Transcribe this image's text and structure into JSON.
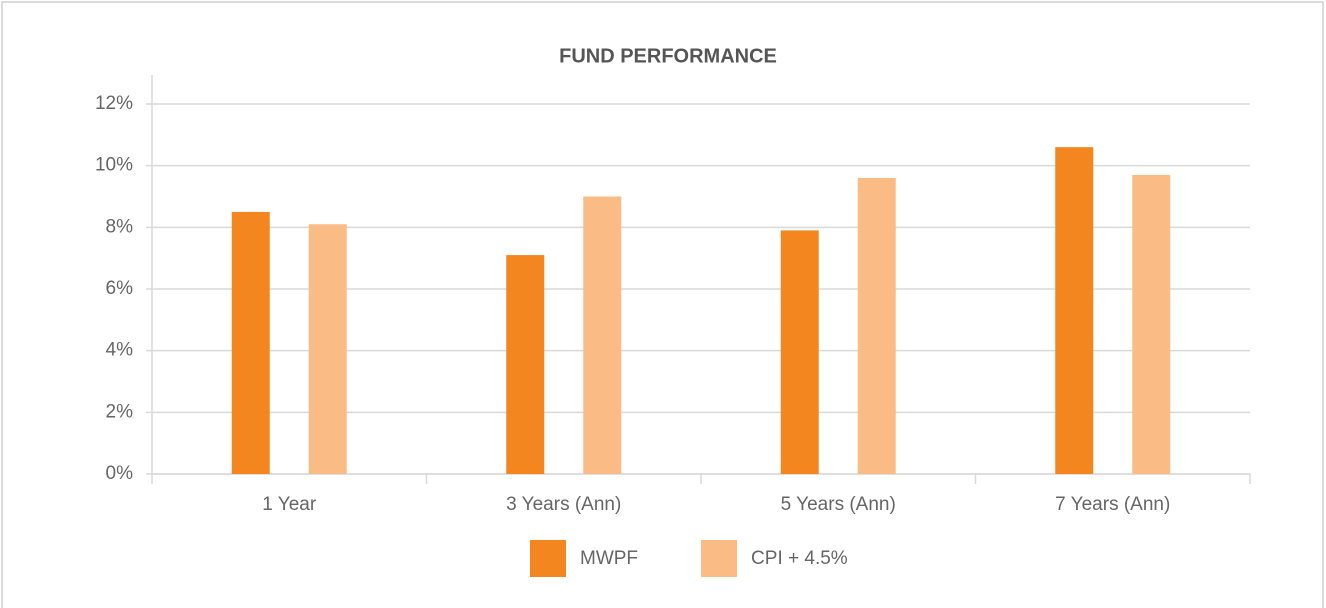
{
  "chart_data": {
    "type": "bar",
    "title": "FUND PERFORMANCE",
    "categories": [
      "1 Year",
      "3 Years (Ann)",
      "5 Years (Ann)",
      "7 Years (Ann)"
    ],
    "series": [
      {
        "name": "MWPF",
        "color": "#f4861f",
        "values": [
          8.5,
          7.1,
          7.9,
          10.6
        ]
      },
      {
        "name": "CPI + 4.5%",
        "color": "#fbbb85",
        "values": [
          8.1,
          9.0,
          9.6,
          9.7
        ]
      }
    ],
    "ylim": [
      0,
      12
    ],
    "yticks": [
      {
        "value": 0,
        "label": "0%"
      },
      {
        "value": 2,
        "label": "2%"
      },
      {
        "value": 4,
        "label": "4%"
      },
      {
        "value": 6,
        "label": "6%"
      },
      {
        "value": 8,
        "label": "8%"
      },
      {
        "value": 10,
        "label": "10%"
      },
      {
        "value": 12,
        "label": "12%"
      }
    ],
    "grid": true,
    "legend": "bottom"
  }
}
